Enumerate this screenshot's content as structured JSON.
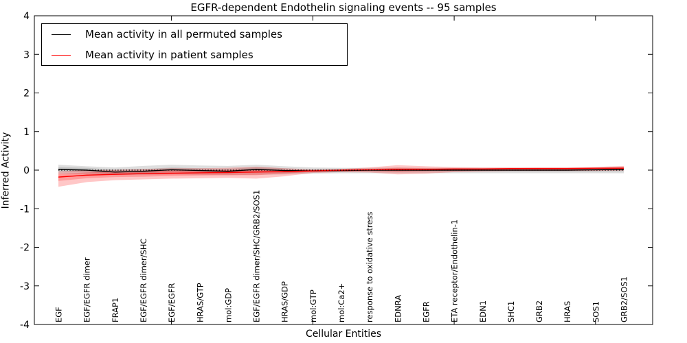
{
  "title": "EGFR-dependent Endothelin signaling events -- 95 samples",
  "axes": {
    "ylabel": "Inferred Activity",
    "xlabel": "Cellular Entities",
    "yticks": [
      4,
      3,
      2,
      1,
      0,
      -1,
      -2,
      -3,
      -4
    ]
  },
  "legend": {
    "items": [
      {
        "label": "Mean activity in all permuted samples",
        "color": "#000000"
      },
      {
        "label": "Mean activity in patient samples",
        "color": "#ff0000"
      }
    ]
  },
  "chart_data": {
    "type": "line",
    "title": "EGFR-dependent Endothelin signaling events -- 95 samples",
    "xlabel": "Cellular Entities",
    "ylabel": "Inferred Activity",
    "ylim": [
      -4,
      4
    ],
    "grid": false,
    "legend_position": "upper left",
    "zero_line": {
      "style": "dotted",
      "color": "#000000",
      "y": 0
    },
    "categories": [
      "EGF",
      "EGF/EGFR dimer",
      "FRAP1",
      "EGF/EGFR dimer/SHC",
      "EGF/EGFR",
      "HRAS/GTP",
      "mol:GDP",
      "EGF/EGFR dimer/SHC/GRB2/SOS1",
      "HRAS/GDP",
      "mol:GTP",
      "mol:Ca2+",
      "response to oxidative stress",
      "EDNRA",
      "EGFR",
      "ETA receptor/Endothelin-1",
      "EDN1",
      "SHC1",
      "GRB2",
      "HRAS",
      "SOS1",
      "GRB2/SOS1"
    ],
    "series": [
      {
        "name": "Mean activity in all permuted samples",
        "color": "#000000",
        "values": [
          0.02,
          0.0,
          -0.05,
          -0.03,
          0.01,
          -0.01,
          -0.03,
          0.02,
          -0.01,
          -0.02,
          -0.01,
          0.0,
          0.0,
          0.0,
          0.0,
          0.0,
          0.0,
          0.0,
          0.0,
          0.01,
          0.02
        ]
      },
      {
        "name": "Mean activity in patient samples",
        "color": "#ff0000",
        "values": [
          -0.18,
          -0.13,
          -0.11,
          -0.09,
          -0.08,
          -0.07,
          -0.06,
          -0.05,
          -0.04,
          -0.02,
          0.0,
          0.01,
          0.02,
          0.02,
          0.03,
          0.03,
          0.04,
          0.04,
          0.04,
          0.05,
          0.05
        ]
      }
    ],
    "bands": [
      {
        "name": "permuted-band-outer",
        "color": "#000000",
        "opacity": 0.13,
        "upper": [
          0.14,
          0.1,
          0.07,
          0.11,
          0.14,
          0.12,
          0.11,
          0.14,
          0.1,
          0.07,
          0.06,
          0.06,
          0.07,
          0.06,
          0.06,
          0.06,
          0.06,
          0.06,
          0.06,
          0.07,
          0.09
        ],
        "lower": [
          -0.1,
          -0.11,
          -0.13,
          -0.12,
          -0.11,
          -0.12,
          -0.13,
          -0.12,
          -0.11,
          -0.09,
          -0.08,
          -0.08,
          -0.08,
          -0.08,
          -0.08,
          -0.08,
          -0.08,
          -0.08,
          -0.08,
          -0.08,
          -0.08
        ]
      },
      {
        "name": "permuted-band-inner",
        "color": "#000000",
        "opacity": 0.11,
        "upper": [
          0.08,
          0.06,
          0.01,
          0.03,
          0.07,
          0.05,
          0.03,
          0.08,
          0.05,
          0.02,
          0.02,
          0.03,
          0.03,
          0.03,
          0.03,
          0.03,
          0.03,
          0.03,
          0.03,
          0.04,
          0.05
        ],
        "lower": [
          -0.04,
          -0.06,
          -0.1,
          -0.09,
          -0.05,
          -0.07,
          -0.09,
          -0.04,
          -0.07,
          -0.06,
          -0.05,
          -0.04,
          -0.04,
          -0.04,
          -0.04,
          -0.04,
          -0.04,
          -0.04,
          -0.04,
          -0.04,
          -0.03
        ]
      },
      {
        "name": "patient-band-outer",
        "color": "#ff0000",
        "opacity": 0.22,
        "upper": [
          -0.03,
          0.0,
          0.01,
          0.03,
          0.05,
          0.05,
          0.06,
          0.09,
          0.05,
          0.02,
          0.03,
          0.07,
          0.13,
          0.1,
          0.08,
          0.07,
          0.07,
          0.07,
          0.07,
          0.08,
          0.11
        ],
        "lower": [
          -0.43,
          -0.31,
          -0.26,
          -0.24,
          -0.22,
          -0.21,
          -0.2,
          -0.22,
          -0.16,
          -0.07,
          -0.05,
          -0.06,
          -0.11,
          -0.09,
          -0.05,
          -0.03,
          -0.02,
          -0.02,
          -0.02,
          -0.02,
          -0.01
        ]
      },
      {
        "name": "patient-band-inner",
        "color": "#ff0000",
        "opacity": 0.22,
        "upper": [
          -0.1,
          -0.06,
          -0.04,
          -0.02,
          -0.01,
          0.0,
          0.0,
          0.02,
          0.0,
          0.0,
          0.01,
          0.03,
          0.06,
          0.05,
          0.05,
          0.05,
          0.05,
          0.06,
          0.06,
          0.06,
          0.08
        ],
        "lower": [
          -0.28,
          -0.21,
          -0.18,
          -0.17,
          -0.15,
          -0.14,
          -0.13,
          -0.13,
          -0.09,
          -0.04,
          -0.02,
          -0.02,
          -0.04,
          -0.02,
          0.0,
          0.01,
          0.02,
          0.02,
          0.02,
          0.03,
          0.02
        ]
      }
    ]
  }
}
